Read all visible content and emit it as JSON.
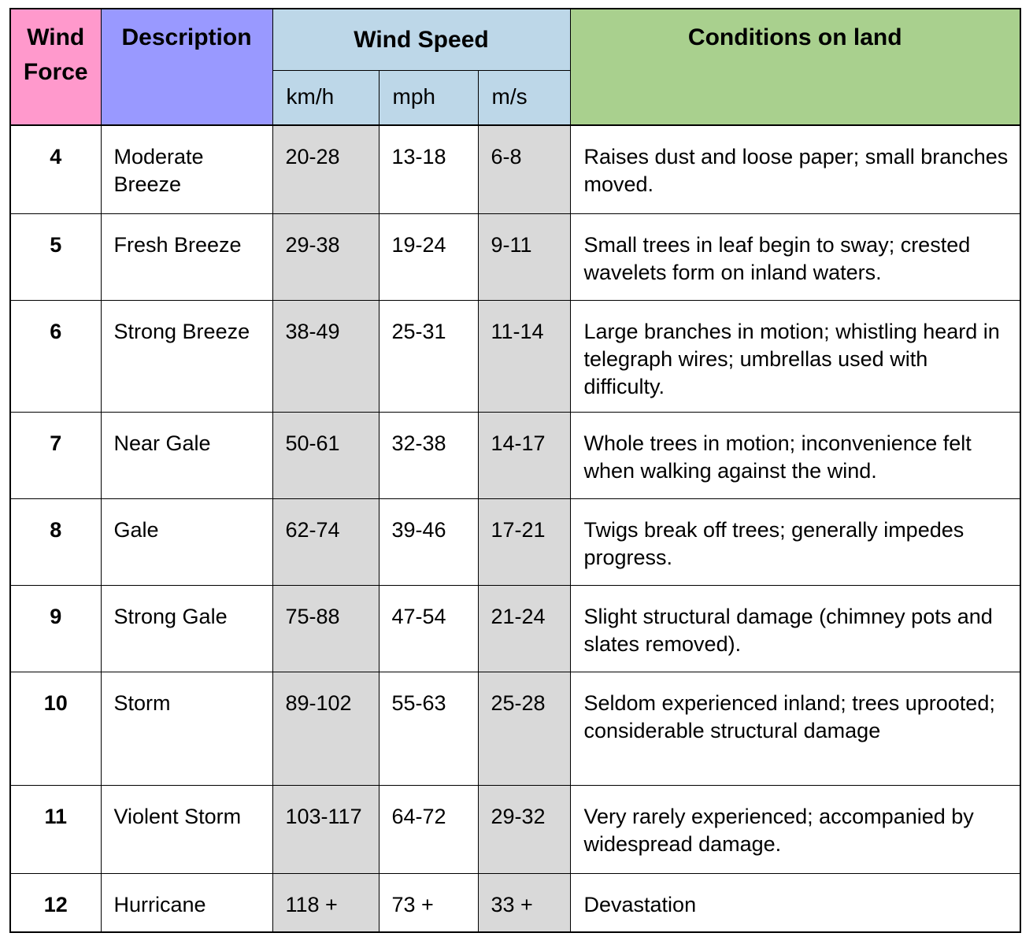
{
  "chart_data": {
    "type": "table",
    "header": {
      "wind_force": "Wind Force",
      "description": "Description",
      "wind_speed": "Wind Speed",
      "units": [
        "km/h",
        "mph",
        "m/s"
      ],
      "conditions": "Conditions on land"
    },
    "row_fields": [
      "force",
      "description",
      "kmh",
      "mph",
      "ms",
      "conditions"
    ],
    "rows": [
      {
        "force": "4",
        "description": "Moderate Breeze",
        "kmh": "20-28",
        "mph": "13-18",
        "ms": "6-8",
        "conditions": "Raises dust and loose paper; small branches moved."
      },
      {
        "force": "5",
        "description": "Fresh Breeze",
        "kmh": "29-38",
        "mph": "19-24",
        "ms": "9-11",
        "conditions": "Small trees in leaf begin to sway; crested wavelets form on inland waters."
      },
      {
        "force": "6",
        "description": "Strong Breeze",
        "kmh": "38-49",
        "mph": "25-31",
        "ms": "11-14",
        "conditions": "Large branches in motion; whistling heard in telegraph wires; umbrellas used with difficulty."
      },
      {
        "force": "7",
        "description": "Near Gale",
        "kmh": "50-61",
        "mph": "32-38",
        "ms": "14-17",
        "conditions": "Whole trees in motion; inconvenience felt when walking against the wind."
      },
      {
        "force": "8",
        "description": "Gale",
        "kmh": "62-74",
        "mph": "39-46",
        "ms": "17-21",
        "conditions": "Twigs break off trees; generally impedes progress."
      },
      {
        "force": "9",
        "description": "Strong Gale",
        "kmh": "75-88",
        "mph": "47-54",
        "ms": "21-24",
        "conditions": "Slight structural damage (chimney pots and slates removed)."
      },
      {
        "force": "10",
        "description": "Storm",
        "kmh": "89-102",
        "mph": "55-63",
        "ms": "25-28",
        "conditions": "Seldom experienced inland; trees uprooted; considerable structural damage"
      },
      {
        "force": "11",
        "description": "Violent Storm",
        "kmh": "103-117",
        "mph": "64-72",
        "ms": "29-32",
        "conditions": "Very rarely experienced; accompanied by widespread damage."
      },
      {
        "force": "12",
        "description": "Hurricane",
        "kmh": "118 +",
        "mph": "73 +",
        "ms": "33 +",
        "conditions": "Devastation"
      }
    ],
    "colors": {
      "wind_force_header": "#FF99CC",
      "description_header": "#9999FF",
      "wind_speed_header": "#BDD7E8",
      "conditions_header": "#A9D08E",
      "shaded_column": "#D9D9D9",
      "border": "#000000"
    }
  }
}
